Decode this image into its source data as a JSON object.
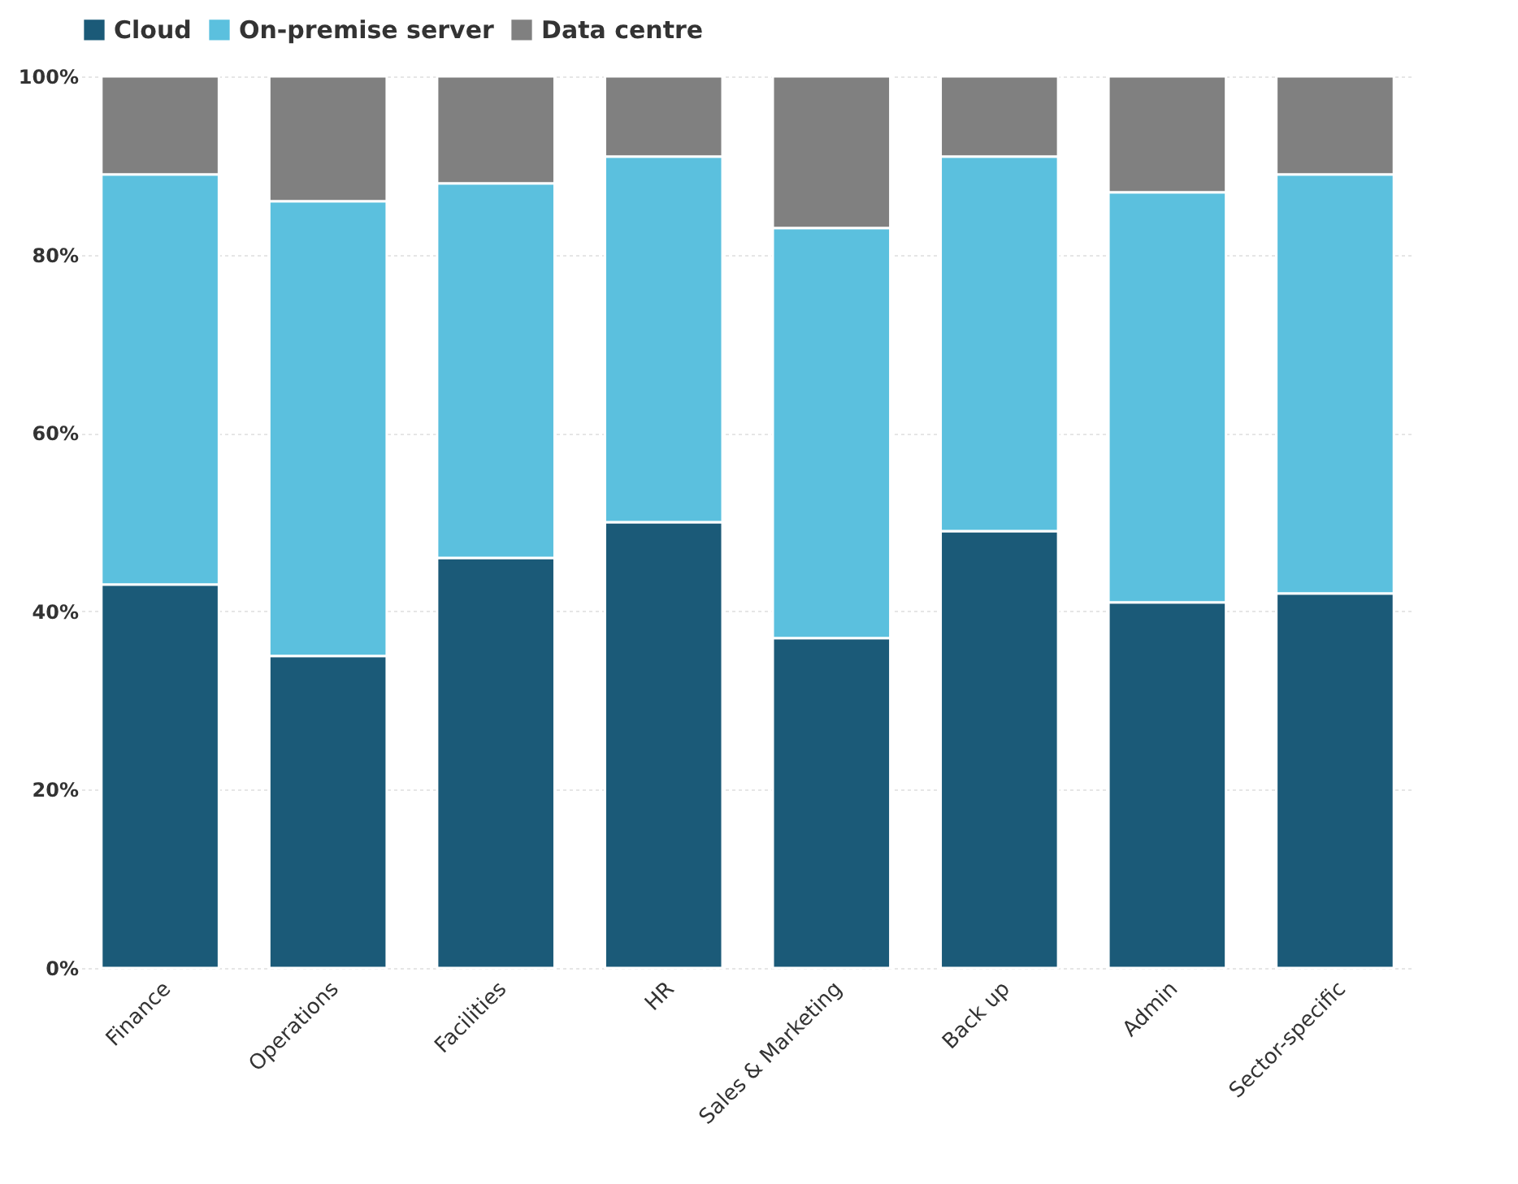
{
  "chart_data": {
    "type": "bar",
    "stacked": true,
    "categories": [
      "Finance",
      "Operations",
      "Facilities",
      "HR",
      "Sales & Marketing",
      "Back up",
      "Admin",
      "Sector-specific"
    ],
    "series": [
      {
        "name": "Cloud",
        "color": "#1b5a78",
        "values": [
          43,
          35,
          46,
          50,
          37,
          49,
          41,
          42
        ]
      },
      {
        "name": "On-premise server",
        "color": "#5bc0de",
        "values": [
          46,
          51,
          42,
          41,
          46,
          42,
          46,
          47
        ]
      },
      {
        "name": "Data centre",
        "color": "#808080",
        "values": [
          11,
          14,
          12,
          9,
          17,
          9,
          13,
          11
        ]
      }
    ],
    "ylim": [
      0,
      100
    ],
    "yticks": [
      {
        "value": 0,
        "label": "0%"
      },
      {
        "value": 20,
        "label": "20%"
      },
      {
        "value": 40,
        "label": "40%"
      },
      {
        "value": 60,
        "label": "60%"
      },
      {
        "value": 80,
        "label": "80%"
      },
      {
        "value": 100,
        "label": "100%"
      }
    ],
    "grid": "y",
    "legend": "top"
  }
}
